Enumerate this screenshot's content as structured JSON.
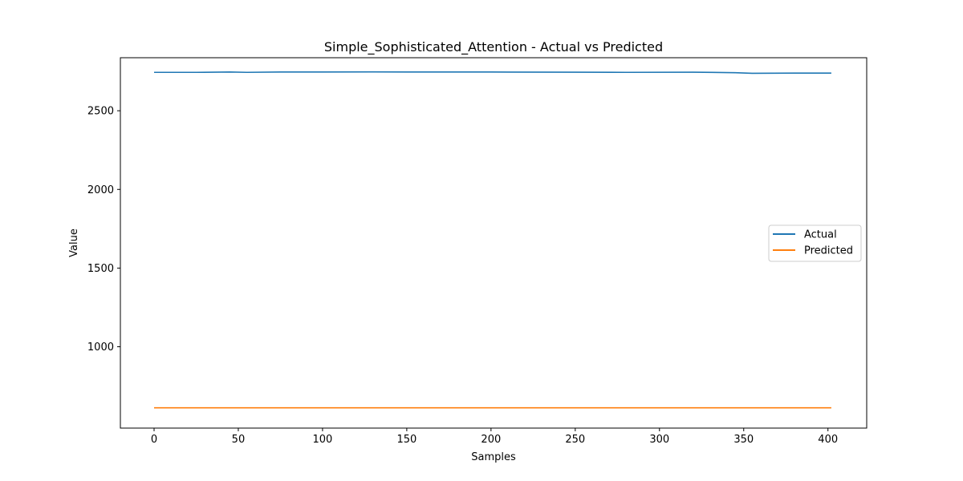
{
  "chart_data": {
    "type": "line",
    "title": "Simple_Sophisticated_Attention - Actual vs Predicted",
    "xlabel": "Samples",
    "ylabel": "Value",
    "xlim": [
      -20,
      423
    ],
    "ylim": [
      483,
      2837
    ],
    "xticks": [
      0,
      50,
      100,
      150,
      200,
      250,
      300,
      350,
      400
    ],
    "yticks": [
      1000,
      1500,
      2000,
      2500
    ],
    "legend_position": "center-right",
    "series": [
      {
        "name": "Actual",
        "color": "#1f77b4",
        "x": [
          0,
          25,
          45,
          55,
          75,
          100,
          130,
          150,
          200,
          250,
          280,
          320,
          345,
          355,
          380,
          402
        ],
        "values": [
          2744,
          2744,
          2746,
          2744,
          2746,
          2746,
          2747,
          2746,
          2746,
          2745,
          2744,
          2745,
          2742,
          2738,
          2739,
          2739
        ]
      },
      {
        "name": "Predicted",
        "color": "#ff7f0e",
        "x": [
          0,
          402
        ],
        "values": [
          612,
          612
        ]
      }
    ]
  }
}
